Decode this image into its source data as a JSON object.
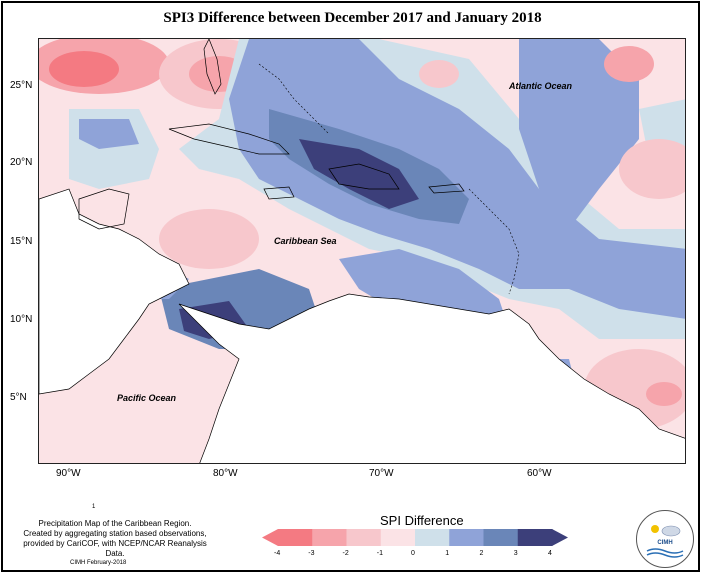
{
  "title": "SPI3 Difference between December 2017 and January 2018",
  "map": {
    "labels": {
      "atlantic": "Atlantic Ocean",
      "caribbean": "Caribbean Sea",
      "pacific": "Pacific Ocean"
    },
    "lat_ticks": [
      "25°N",
      "20°N",
      "15°N",
      "10°N",
      "5°N"
    ],
    "lon_ticks": [
      "90°W",
      "80°W",
      "70°W",
      "60°W"
    ]
  },
  "footer": {
    "marker": "1",
    "note_line1": "Precipitation Map of the Caribbean Region.",
    "note_line2": "Created by aggregating station based observations,",
    "note_line3": "provided by CariCOF, with NCEP/NCAR Reanalysis Data.",
    "credit": "CIMH February-2018"
  },
  "legend": {
    "title": "SPI Difference",
    "ticks": [
      "-4",
      "-3",
      "-2",
      "-1",
      "0",
      "1",
      "2",
      "3",
      "4"
    ],
    "colors": [
      "#f47a82",
      "#f6a4ab",
      "#f7c7cc",
      "#fbe3e6",
      "#ffffff",
      "#cfe0ea",
      "#8fa3d8",
      "#6a86b8",
      "#3c3f7a"
    ]
  },
  "logo": {
    "text": "CIMH"
  }
}
